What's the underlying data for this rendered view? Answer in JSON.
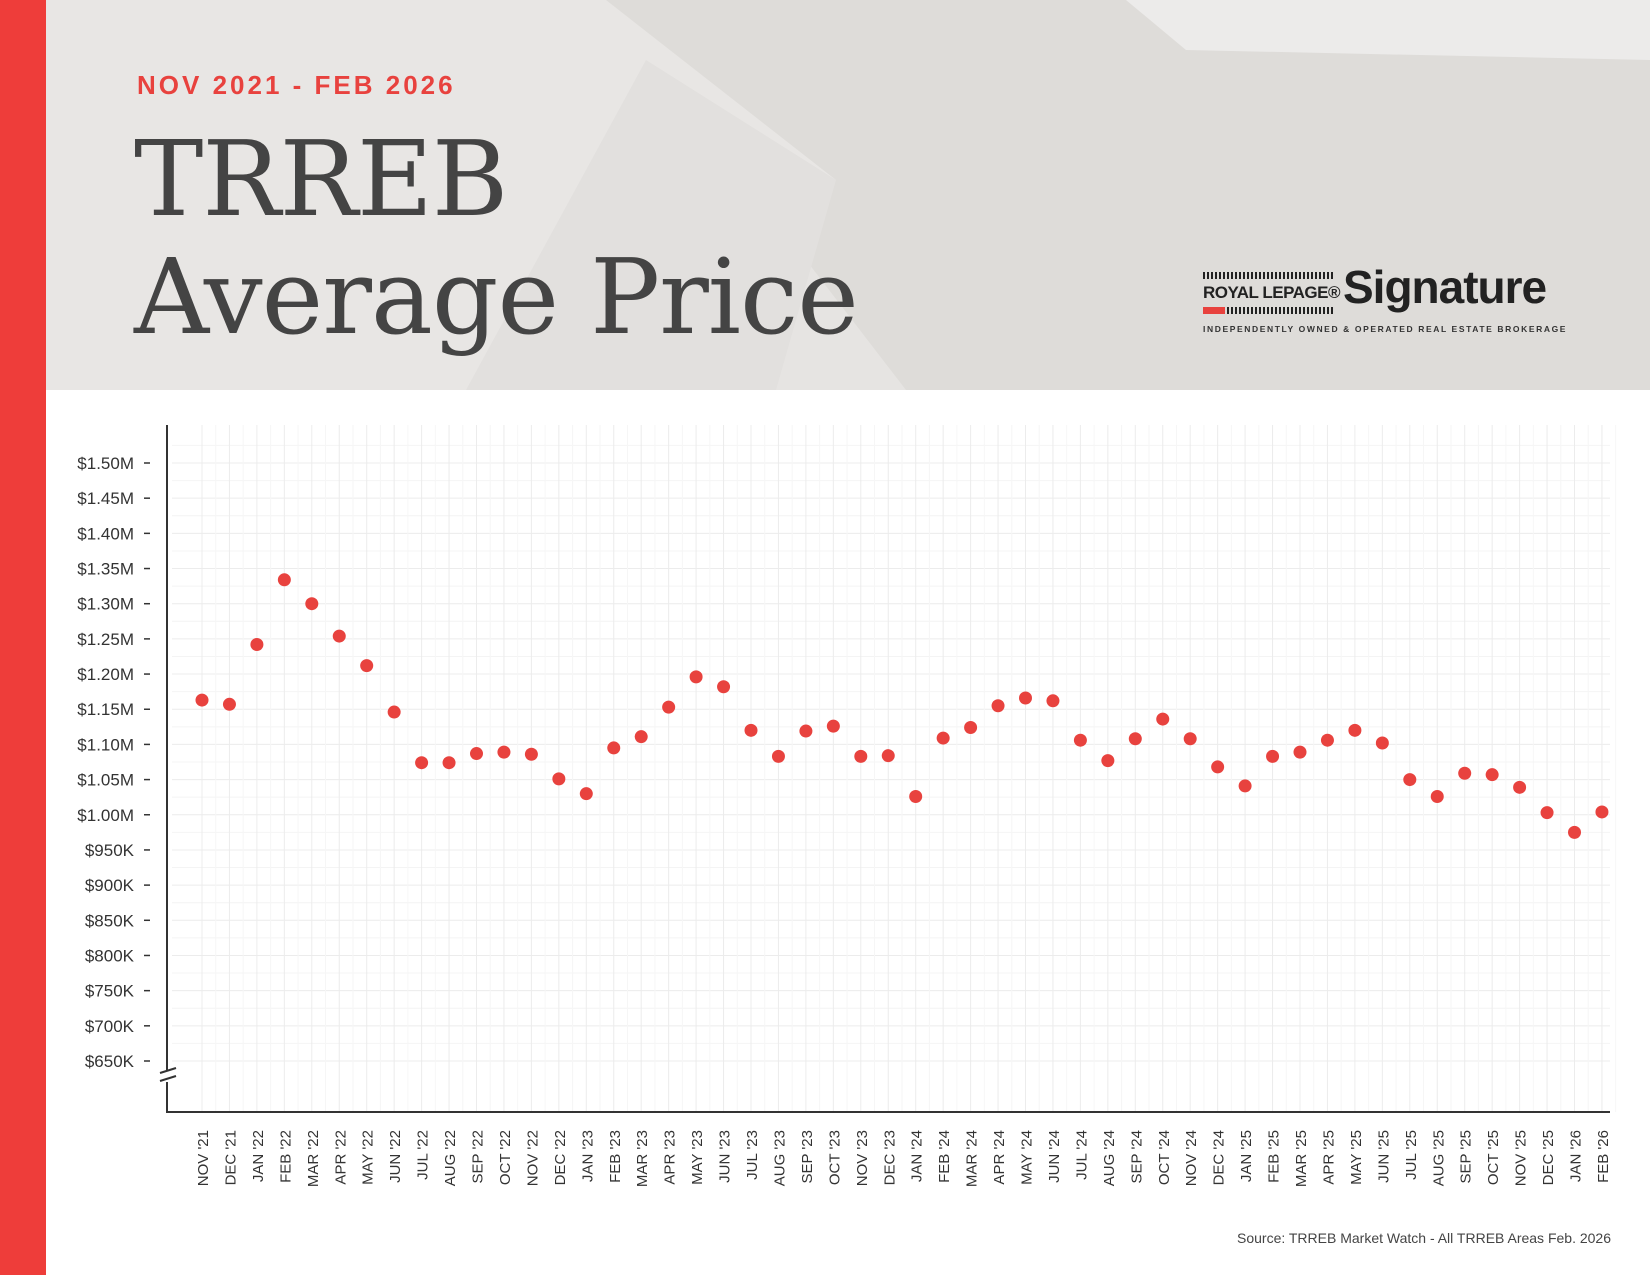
{
  "header": {
    "period": "NOV 2021 - FEB 2026",
    "title_line1": "TRREB",
    "title_line2": "Average Price"
  },
  "logo": {
    "brand": "ROYAL LEPAGE®",
    "name": "Signature",
    "tagline": "INDEPENDENTLY OWNED & OPERATED REAL ESTATE BROKERAGE"
  },
  "source": "Source: TRREB Market Watch - All TRREB Areas Feb. 2026",
  "colors": {
    "accent": "#ee3d3a",
    "point": "#e8423e",
    "header_bg": "#e6e4e2",
    "grid": "#ececec",
    "axis": "#333333"
  },
  "chart_data": {
    "type": "scatter",
    "title": "",
    "xlabel": "",
    "ylabel": "",
    "grid": true,
    "ylim": [
      600000,
      1550000
    ],
    "y_axis_break": true,
    "yticks": [
      650000,
      700000,
      750000,
      800000,
      850000,
      900000,
      950000,
      1000000,
      1050000,
      1100000,
      1150000,
      1200000,
      1250000,
      1300000,
      1350000,
      1400000,
      1450000,
      1500000
    ],
    "ytick_labels": [
      "$650K",
      "$700K",
      "$750K",
      "$800K",
      "$850K",
      "$900K",
      "$950K",
      "$1.00M",
      "$1.05M",
      "$1.10M",
      "$1.15M",
      "$1.20M",
      "$1.25M",
      "$1.30M",
      "$1.35M",
      "$1.40M",
      "$1.45M",
      "$1.50M"
    ],
    "categories": [
      "NOV '21",
      "DEC '21",
      "JAN '22",
      "FEB '22",
      "MAR '22",
      "APR '22",
      "MAY '22",
      "JUN '22",
      "JUL '22",
      "AUG '22",
      "SEP '22",
      "OCT '22",
      "NOV '22",
      "DEC '22",
      "JAN '23",
      "FEB '23",
      "MAR '23",
      "APR '23",
      "MAY '23",
      "JUN '23",
      "JUL '23",
      "AUG '23",
      "SEP '23",
      "OCT '23",
      "NOV '23",
      "DEC '23",
      "JAN '24",
      "FEB '24",
      "MAR '24",
      "APR '24",
      "MAY '24",
      "JUN '24",
      "JUL '24",
      "AUG '24",
      "SEP '24",
      "OCT '24",
      "NOV '24",
      "DEC '24",
      "JAN '25",
      "FEB '25",
      "MAR '25",
      "APR '25",
      "MAY '25",
      "JUN '25",
      "JUL '25",
      "AUG '25",
      "SEP '25",
      "OCT '25",
      "NOV '25",
      "DEC '25",
      "JAN '26",
      "FEB '26"
    ],
    "series": [
      {
        "values": [
          1163000,
          1157000,
          1242000,
          1334000,
          1300000,
          1254000,
          1212000,
          1146000,
          1074000,
          1074000,
          1087000,
          1089000,
          1086000,
          1051000,
          1030000,
          1095000,
          1111000,
          1153000,
          1196000,
          1182000,
          1120000,
          1083000,
          1119000,
          1126000,
          1083000,
          1084000,
          1026000,
          1109000,
          1124000,
          1155000,
          1166000,
          1162000,
          1106000,
          1077000,
          1108000,
          1136000,
          1108000,
          1068000,
          1041000,
          1083000,
          1089000,
          1106000,
          1120000,
          1102000,
          1050000,
          1026000,
          1059000,
          1057000,
          1039000,
          1003000,
          975000,
          1004000
        ]
      }
    ]
  }
}
